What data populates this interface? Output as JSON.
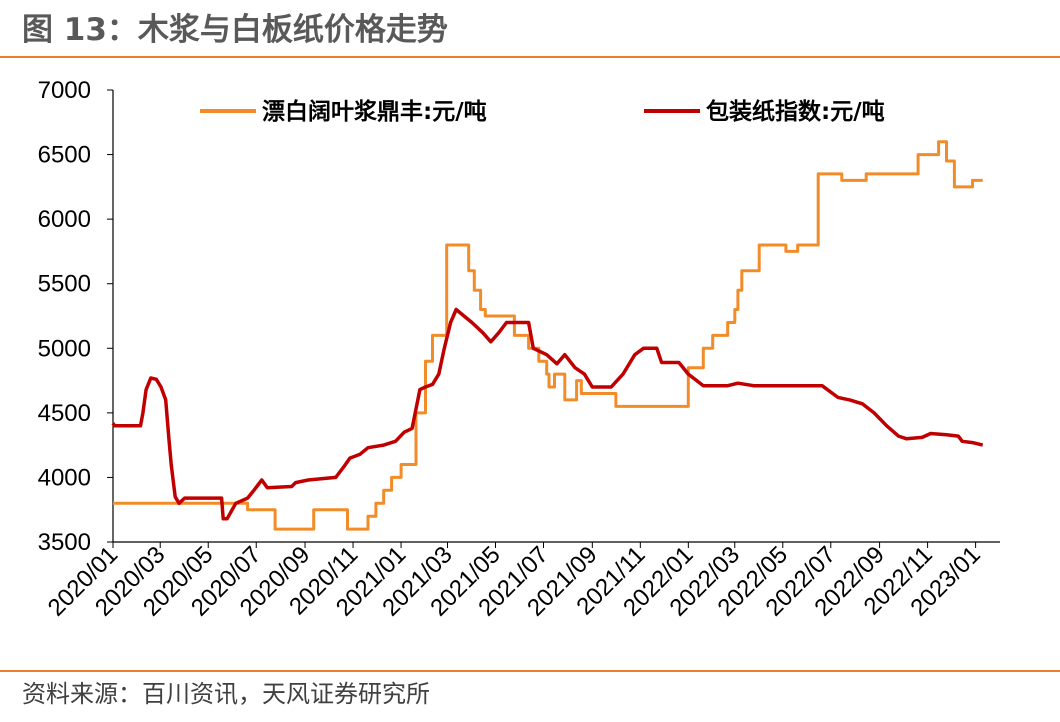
{
  "title": "图 13：木浆与白板纸价格走势",
  "source": "资料来源：百川资讯，天风证券研究所",
  "colors": {
    "accent": "#ED7D31",
    "pulp": "#F28C28",
    "board": "#C00000",
    "axis": "#000000"
  },
  "chart_data": {
    "type": "line",
    "title": "图 13：木浆与白板纸价格走势",
    "xlabel": "",
    "ylabel": "",
    "ylim": [
      3500,
      7000
    ],
    "yticks": [
      "3500",
      "4000",
      "4500",
      "5000",
      "5500",
      "6000",
      "6500",
      "7000"
    ],
    "xlim": [
      "2020/01",
      "2023/02"
    ],
    "xticks": [
      "2020/01",
      "2020/03",
      "2020/05",
      "2020/07",
      "2020/09",
      "2020/11",
      "2021/01",
      "2021/03",
      "2021/05",
      "2021/07",
      "2021/09",
      "2021/11",
      "2022/01",
      "2022/03",
      "2022/05",
      "2022/07",
      "2022/09",
      "2022/11",
      "2023/01"
    ],
    "grid": false,
    "legend_position": "top",
    "series": [
      {
        "name": "漂白阔叶浆鼎丰:元/吨",
        "color": "#F28C28",
        "points": [
          [
            "2020-01-01",
            3800
          ],
          [
            "2020-06-20",
            3800
          ],
          [
            "2020-06-20",
            3750
          ],
          [
            "2020-07-25",
            3750
          ],
          [
            "2020-07-25",
            3600
          ],
          [
            "2020-09-12",
            3600
          ],
          [
            "2020-09-12",
            3750
          ],
          [
            "2020-10-25",
            3750
          ],
          [
            "2020-10-25",
            3600
          ],
          [
            "2020-11-20",
            3600
          ],
          [
            "2020-11-20",
            3700
          ],
          [
            "2020-11-30",
            3700
          ],
          [
            "2020-11-30",
            3800
          ],
          [
            "2020-12-10",
            3800
          ],
          [
            "2020-12-10",
            3900
          ],
          [
            "2020-12-20",
            3900
          ],
          [
            "2020-12-20",
            4000
          ],
          [
            "2021-01-01",
            4000
          ],
          [
            "2021-01-01",
            4100
          ],
          [
            "2021-01-20",
            4100
          ],
          [
            "2021-01-20",
            4500
          ],
          [
            "2021-02-01",
            4500
          ],
          [
            "2021-02-01",
            4900
          ],
          [
            "2021-02-10",
            4900
          ],
          [
            "2021-02-10",
            5100
          ],
          [
            "2021-02-28",
            5100
          ],
          [
            "2021-02-28",
            5800
          ],
          [
            "2021-03-28",
            5800
          ],
          [
            "2021-03-28",
            5600
          ],
          [
            "2021-04-04",
            5600
          ],
          [
            "2021-04-04",
            5450
          ],
          [
            "2021-04-12",
            5450
          ],
          [
            "2021-04-12",
            5300
          ],
          [
            "2021-04-18",
            5300
          ],
          [
            "2021-04-18",
            5250
          ],
          [
            "2021-05-25",
            5250
          ],
          [
            "2021-05-25",
            5100
          ],
          [
            "2021-06-12",
            5100
          ],
          [
            "2021-06-12",
            5000
          ],
          [
            "2021-06-25",
            5000
          ],
          [
            "2021-06-25",
            4900
          ],
          [
            "2021-07-05",
            4900
          ],
          [
            "2021-07-05",
            4800
          ],
          [
            "2021-07-08",
            4800
          ],
          [
            "2021-07-08",
            4700
          ],
          [
            "2021-07-15",
            4700
          ],
          [
            "2021-07-15",
            4800
          ],
          [
            "2021-07-28",
            4800
          ],
          [
            "2021-07-28",
            4600
          ],
          [
            "2021-08-12",
            4600
          ],
          [
            "2021-08-12",
            4750
          ],
          [
            "2021-08-18",
            4750
          ],
          [
            "2021-08-18",
            4650
          ],
          [
            "2021-10-01",
            4650
          ],
          [
            "2021-10-01",
            4550
          ],
          [
            "2022-01-01",
            4550
          ],
          [
            "2022-01-01",
            4850
          ],
          [
            "2022-01-20",
            4850
          ],
          [
            "2022-01-20",
            5000
          ],
          [
            "2022-02-01",
            5000
          ],
          [
            "2022-02-01",
            5100
          ],
          [
            "2022-02-20",
            5100
          ],
          [
            "2022-02-20",
            5200
          ],
          [
            "2022-03-01",
            5200
          ],
          [
            "2022-03-01",
            5300
          ],
          [
            "2022-03-05",
            5300
          ],
          [
            "2022-03-05",
            5450
          ],
          [
            "2022-03-10",
            5450
          ],
          [
            "2022-03-10",
            5600
          ],
          [
            "2022-04-01",
            5600
          ],
          [
            "2022-04-01",
            5800
          ],
          [
            "2022-05-05",
            5800
          ],
          [
            "2022-05-05",
            5750
          ],
          [
            "2022-05-20",
            5750
          ],
          [
            "2022-05-20",
            5800
          ],
          [
            "2022-06-15",
            5800
          ],
          [
            "2022-06-15",
            6350
          ],
          [
            "2022-07-15",
            6350
          ],
          [
            "2022-07-15",
            6300
          ],
          [
            "2022-08-15",
            6300
          ],
          [
            "2022-08-15",
            6350
          ],
          [
            "2022-10-20",
            6350
          ],
          [
            "2022-10-20",
            6500
          ],
          [
            "2022-11-15",
            6500
          ],
          [
            "2022-11-15",
            6600
          ],
          [
            "2022-11-25",
            6600
          ],
          [
            "2022-11-25",
            6450
          ],
          [
            "2022-12-05",
            6450
          ],
          [
            "2022-12-05",
            6250
          ],
          [
            "2022-12-28",
            6250
          ],
          [
            "2022-12-28",
            6300
          ],
          [
            "2023-01-10",
            6300
          ]
        ]
      },
      {
        "name": "包装纸指数:元/吨",
        "color": "#C00000",
        "points": [
          [
            "2020-01-01",
            4420
          ],
          [
            "2020-01-03",
            4400
          ],
          [
            "2020-02-05",
            4400
          ],
          [
            "2020-02-08",
            4500
          ],
          [
            "2020-02-12",
            4680
          ],
          [
            "2020-02-18",
            4770
          ],
          [
            "2020-02-25",
            4760
          ],
          [
            "2020-03-02",
            4700
          ],
          [
            "2020-03-08",
            4600
          ],
          [
            "2020-03-12",
            4300
          ],
          [
            "2020-03-15",
            4100
          ],
          [
            "2020-03-20",
            3850
          ],
          [
            "2020-03-25",
            3800
          ],
          [
            "2020-04-01",
            3840
          ],
          [
            "2020-05-10",
            3840
          ],
          [
            "2020-05-18",
            3840
          ],
          [
            "2020-05-20",
            3680
          ],
          [
            "2020-05-25",
            3680
          ],
          [
            "2020-06-05",
            3800
          ],
          [
            "2020-06-20",
            3840
          ],
          [
            "2020-06-28",
            3900
          ],
          [
            "2020-07-08",
            3980
          ],
          [
            "2020-07-15",
            3920
          ],
          [
            "2020-08-15",
            3930
          ],
          [
            "2020-08-20",
            3960
          ],
          [
            "2020-09-05",
            3980
          ],
          [
            "2020-10-10",
            4000
          ],
          [
            "2020-10-20",
            4080
          ],
          [
            "2020-10-28",
            4150
          ],
          [
            "2020-11-10",
            4180
          ],
          [
            "2020-11-20",
            4230
          ],
          [
            "2020-12-10",
            4250
          ],
          [
            "2020-12-25",
            4280
          ],
          [
            "2021-01-05",
            4350
          ],
          [
            "2021-01-15",
            4380
          ],
          [
            "2021-01-20",
            4530
          ],
          [
            "2021-01-25",
            4680
          ],
          [
            "2021-02-01",
            4700
          ],
          [
            "2021-02-10",
            4720
          ],
          [
            "2021-02-18",
            4800
          ],
          [
            "2021-02-25",
            5000
          ],
          [
            "2021-03-05",
            5200
          ],
          [
            "2021-03-12",
            5300
          ],
          [
            "2021-03-22",
            5250
          ],
          [
            "2021-04-01",
            5200
          ],
          [
            "2021-04-15",
            5120
          ],
          [
            "2021-04-25",
            5050
          ],
          [
            "2021-05-05",
            5120
          ],
          [
            "2021-05-15",
            5200
          ],
          [
            "2021-06-12",
            5200
          ],
          [
            "2021-06-18",
            5000
          ],
          [
            "2021-07-05",
            4950
          ],
          [
            "2021-07-18",
            4880
          ],
          [
            "2021-07-28",
            4950
          ],
          [
            "2021-08-10",
            4850
          ],
          [
            "2021-08-22",
            4800
          ],
          [
            "2021-09-01",
            4700
          ],
          [
            "2021-09-15",
            4700
          ],
          [
            "2021-09-25",
            4700
          ],
          [
            "2021-10-10",
            4800
          ],
          [
            "2021-10-25",
            4950
          ],
          [
            "2021-11-05",
            5000
          ],
          [
            "2021-11-22",
            5000
          ],
          [
            "2021-11-28",
            4890
          ],
          [
            "2021-12-20",
            4890
          ],
          [
            "2022-01-01",
            4800
          ],
          [
            "2022-01-20",
            4710
          ],
          [
            "2022-02-20",
            4710
          ],
          [
            "2022-03-05",
            4730
          ],
          [
            "2022-03-25",
            4710
          ],
          [
            "2022-06-20",
            4710
          ],
          [
            "2022-07-10",
            4620
          ],
          [
            "2022-07-25",
            4600
          ],
          [
            "2022-08-10",
            4570
          ],
          [
            "2022-08-25",
            4500
          ],
          [
            "2022-09-10",
            4400
          ],
          [
            "2022-09-25",
            4320
          ],
          [
            "2022-10-05",
            4300
          ],
          [
            "2022-10-25",
            4310
          ],
          [
            "2022-11-05",
            4340
          ],
          [
            "2022-11-25",
            4330
          ],
          [
            "2022-12-10",
            4320
          ],
          [
            "2022-12-15",
            4280
          ],
          [
            "2022-12-28",
            4270
          ],
          [
            "2023-01-10",
            4250
          ]
        ]
      }
    ]
  }
}
